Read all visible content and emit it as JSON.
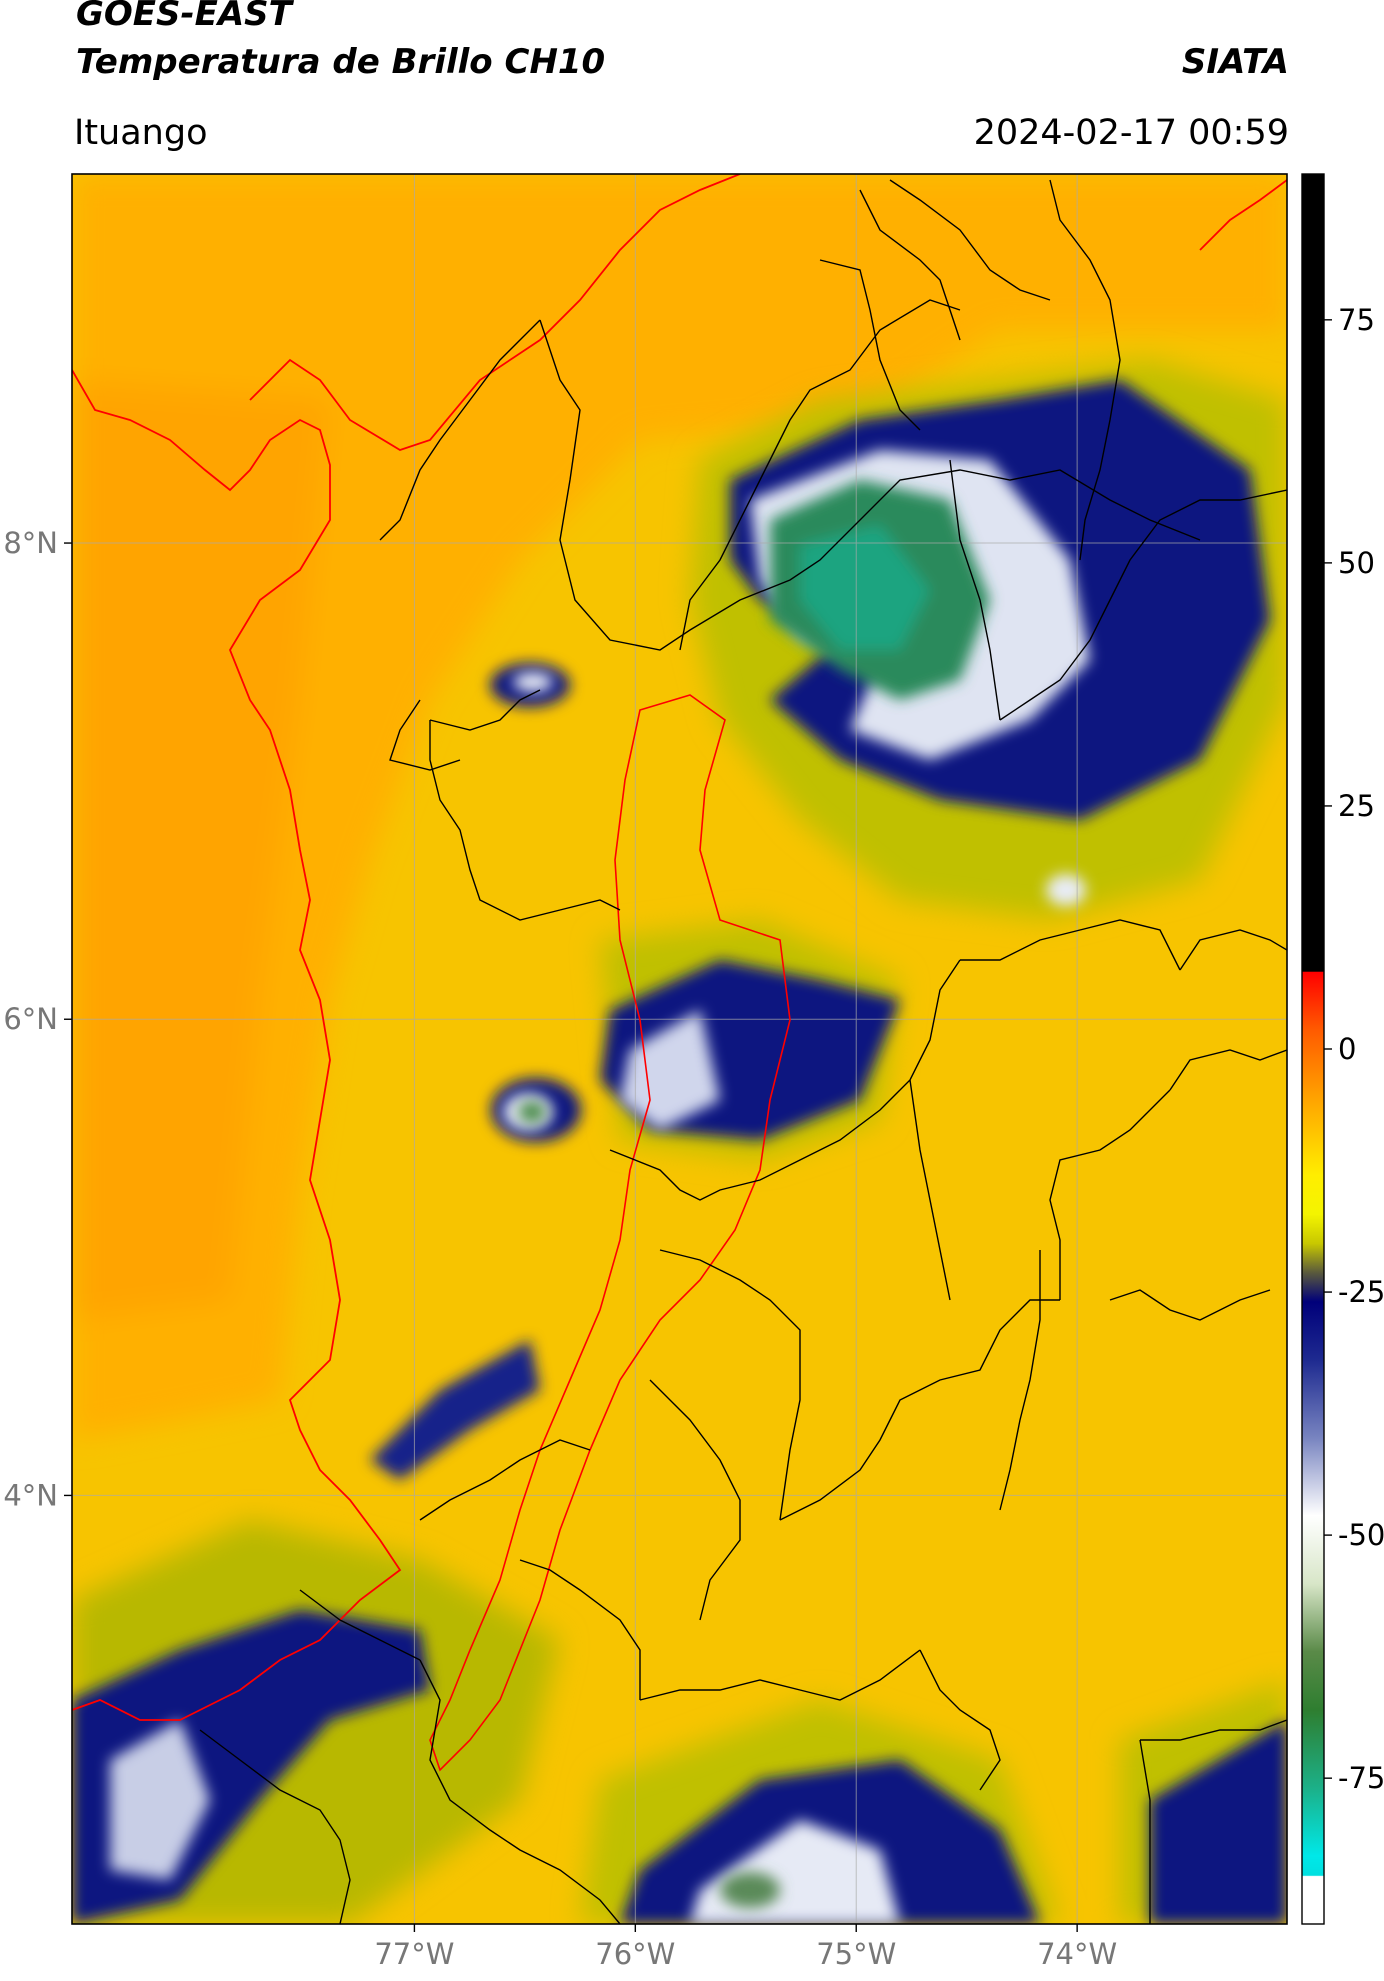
{
  "header": {
    "satellite": "GOES-EAST",
    "product": "Temperatura de Brillo CH10",
    "organization": "SIATA",
    "location": "Ituango",
    "timestamp": "2024-02-17 00:59"
  },
  "map": {
    "lon_range": [
      -78.55,
      -73.05
    ],
    "lat_range": [
      2.2,
      9.55
    ],
    "lon_ticks": [
      {
        "value": -77,
        "label": "77°W"
      },
      {
        "value": -76,
        "label": "76°W"
      },
      {
        "value": -75,
        "label": "75°W"
      },
      {
        "value": -74,
        "label": "74°W"
      }
    ],
    "lat_ticks": [
      {
        "value": 8,
        "label": "8°N"
      },
      {
        "value": 6,
        "label": "6°N"
      },
      {
        "value": 4,
        "label": "4°N"
      }
    ],
    "grid": true,
    "background_color": "#f7c400",
    "coastline_color": "#ff0000",
    "border_color": "#000000"
  },
  "colorbar": {
    "range": [
      -90,
      90
    ],
    "ticks": [
      {
        "value": 75,
        "label": "75"
      },
      {
        "value": 50,
        "label": "50"
      },
      {
        "value": 25,
        "label": "25"
      },
      {
        "value": 0,
        "label": "0"
      },
      {
        "value": -25,
        "label": "-25"
      },
      {
        "value": -50,
        "label": "-50"
      },
      {
        "value": -75,
        "label": "-75"
      }
    ],
    "stops": [
      {
        "value": 90,
        "color": "#000000"
      },
      {
        "value": 8,
        "color": "#000000"
      },
      {
        "value": 7.9,
        "color": "#ff0000"
      },
      {
        "value": 2,
        "color": "#ff5a00"
      },
      {
        "value": -5,
        "color": "#ffa200"
      },
      {
        "value": -13,
        "color": "#ffee00"
      },
      {
        "value": -17,
        "color": "#f4f400"
      },
      {
        "value": -20,
        "color": "#c8c800"
      },
      {
        "value": -23,
        "color": "#5a5a3c"
      },
      {
        "value": -26,
        "color": "#00007a"
      },
      {
        "value": -32,
        "color": "#1e2a90"
      },
      {
        "value": -40,
        "color": "#7884c0"
      },
      {
        "value": -48,
        "color": "#ffffff"
      },
      {
        "value": -55,
        "color": "#d8e6c8"
      },
      {
        "value": -62,
        "color": "#5a8a48"
      },
      {
        "value": -68,
        "color": "#2e7e30"
      },
      {
        "value": -76,
        "color": "#1cb088"
      },
      {
        "value": -83,
        "color": "#00e8e8"
      },
      {
        "value": -85,
        "color": "#00e0e0"
      },
      {
        "value": -85.1,
        "color": "#ffffff"
      },
      {
        "value": -90,
        "color": "#ffffff"
      }
    ]
  }
}
